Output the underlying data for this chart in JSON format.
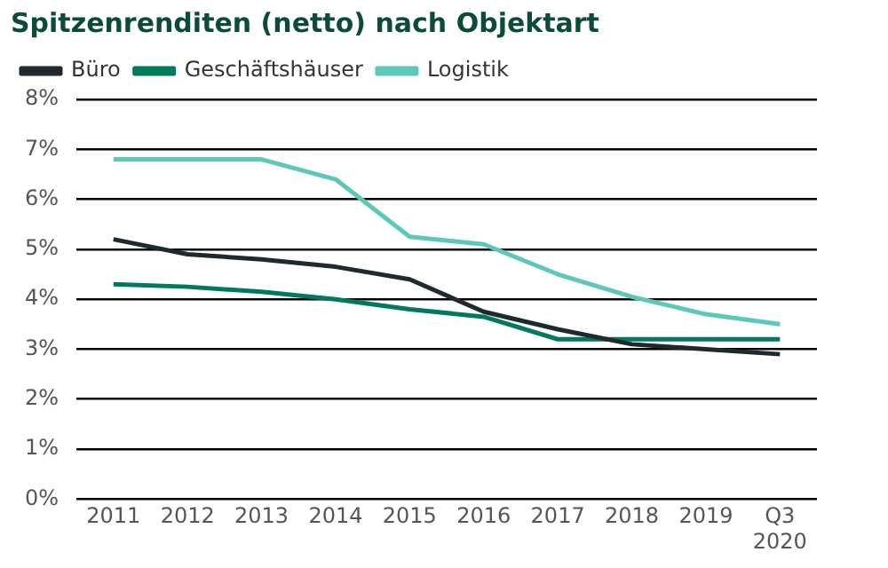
{
  "chart_data": {
    "type": "line",
    "title": "Spitzenrenditen (netto) nach Objektart",
    "categories": [
      "2011",
      "2012",
      "2013",
      "2014",
      "2015",
      "2016",
      "2017",
      "2018",
      "2019",
      "Q3\n2020"
    ],
    "series": [
      {
        "name": "Büro",
        "color": "#1f2a2e",
        "values": [
          5.2,
          4.9,
          4.8,
          4.65,
          4.4,
          3.75,
          3.4,
          3.1,
          3.0,
          2.9
        ]
      },
      {
        "name": "Geschäftshäuser",
        "color": "#00795f",
        "values": [
          4.3,
          4.25,
          4.15,
          4.0,
          3.8,
          3.65,
          3.2,
          3.2,
          3.2,
          3.2
        ]
      },
      {
        "name": "Logistik",
        "color": "#5dc8b8",
        "values": [
          6.8,
          6.8,
          6.8,
          6.4,
          5.25,
          5.1,
          4.5,
          4.05,
          3.7,
          3.5
        ]
      }
    ],
    "ylim": [
      0,
      8
    ],
    "yticks": [
      {
        "value": 0,
        "label": "0%"
      },
      {
        "value": 1,
        "label": "1%"
      },
      {
        "value": 2,
        "label": "2%"
      },
      {
        "value": 3,
        "label": "3%"
      },
      {
        "value": 4,
        "label": "4%"
      },
      {
        "value": 5,
        "label": "5%"
      },
      {
        "value": 6,
        "label": "6%"
      },
      {
        "value": 7,
        "label": "7%"
      },
      {
        "value": 8,
        "label": "8%"
      }
    ],
    "grid": "y",
    "legend": "top left",
    "marker": "none",
    "line_style": "solid"
  }
}
